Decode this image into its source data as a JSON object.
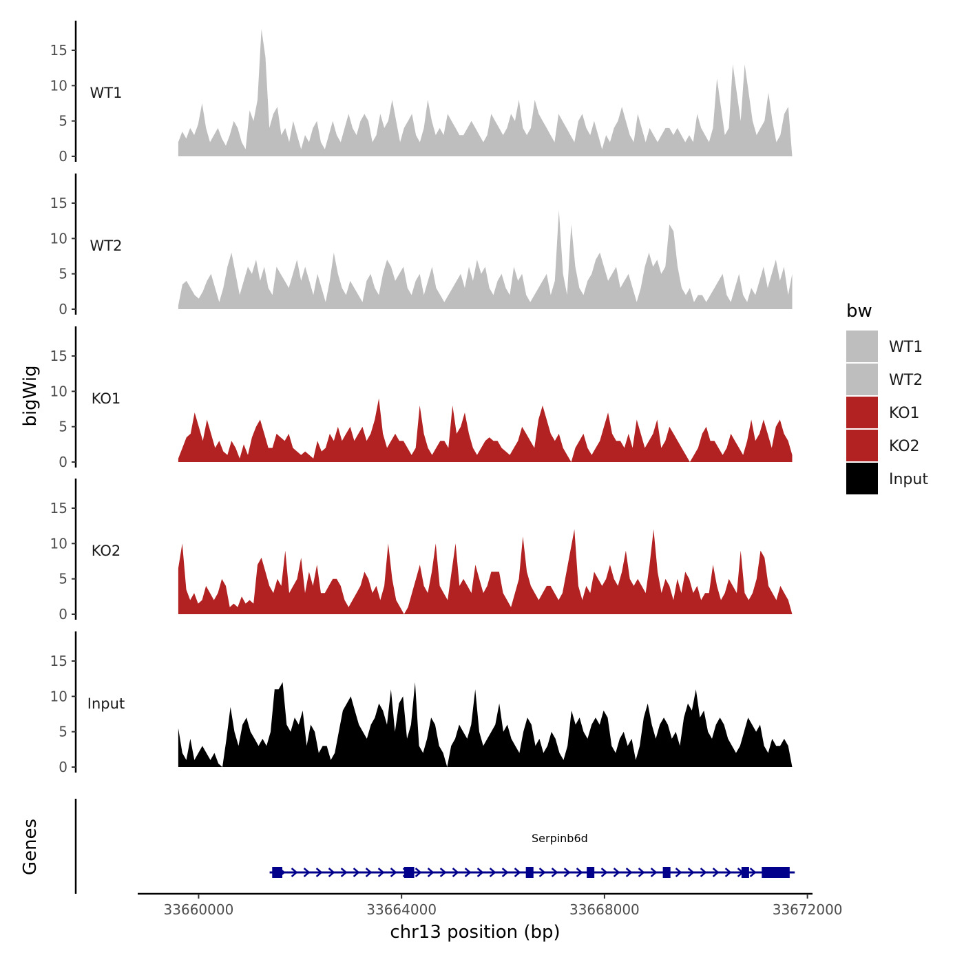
{
  "chart_data": {
    "type": "area",
    "xlabel": "chr13 position (bp)",
    "ylabel": "bigWig",
    "gene_panel_label": "Genes",
    "xlim": [
      33658800,
      33672100
    ],
    "region": [
      33659600,
      33671700
    ],
    "ylim": [
      0,
      18.8
    ],
    "x_ticks": [
      33660000,
      33664000,
      33668000,
      33672000
    ],
    "x_tick_labels": [
      "33660000",
      "33664000",
      "33668000",
      "33672000"
    ],
    "y_ticks": [
      0,
      5,
      10,
      15
    ],
    "y_tick_labels": [
      "0",
      "5",
      "10",
      "15"
    ],
    "legend": {
      "title": "bw",
      "entries": [
        {
          "label": "WT1",
          "color": "#bebebe"
        },
        {
          "label": "WT2",
          "color": "#bebebe"
        },
        {
          "label": "KO1",
          "color": "#b22222"
        },
        {
          "label": "KO2",
          "color": "#b22222"
        },
        {
          "label": "Input",
          "color": "#000000"
        }
      ]
    },
    "series": [
      {
        "name": "WT1",
        "color": "#bebebe",
        "values": [
          2,
          3.5,
          2.5,
          4,
          3,
          4.5,
          7.5,
          4,
          2,
          3,
          4,
          2.5,
          1.5,
          3,
          5,
          4,
          2,
          1,
          6.5,
          5,
          8,
          18,
          14,
          4,
          6,
          7,
          3,
          4,
          2,
          5,
          3,
          1,
          3,
          2,
          4,
          5,
          2,
          1,
          3,
          5,
          3,
          2,
          4,
          6,
          4,
          3,
          5,
          6,
          5,
          2,
          3,
          6,
          4,
          5,
          8,
          5,
          2,
          4,
          5,
          6,
          3,
          2,
          4,
          8,
          5,
          3,
          4,
          3,
          6,
          5,
          4,
          3,
          3,
          4,
          5,
          4,
          3,
          2,
          3,
          6,
          5,
          4,
          3,
          4,
          6,
          5,
          8,
          4,
          3,
          4,
          8,
          6,
          5,
          4,
          3,
          2,
          6,
          5,
          4,
          3,
          2,
          5,
          6,
          4,
          3,
          5,
          3,
          1,
          3,
          2,
          4,
          5,
          7,
          5,
          3,
          2,
          6,
          4,
          2,
          4,
          3,
          2,
          3,
          4,
          4,
          3,
          4,
          3,
          2,
          3,
          2,
          6,
          4,
          3,
          2,
          4,
          11,
          7,
          3,
          4,
          13,
          9,
          5,
          13,
          9,
          5,
          3,
          4,
          5,
          9,
          5,
          2,
          3,
          6,
          7,
          0
        ]
      },
      {
        "name": "WT2",
        "color": "#bebebe",
        "values": [
          0.5,
          3.5,
          4,
          3,
          2,
          1.5,
          2.5,
          4,
          5,
          3,
          1,
          3,
          6,
          8,
          5,
          2,
          4,
          6,
          5,
          7,
          4,
          6,
          3,
          2,
          6,
          5,
          4,
          3,
          5,
          7,
          4,
          6,
          4,
          2,
          5,
          3,
          1,
          4,
          8,
          5,
          3,
          2,
          4,
          3,
          2,
          1,
          4,
          5,
          3,
          2,
          5,
          7,
          6,
          4,
          5,
          6,
          3,
          2,
          4,
          5,
          2,
          4,
          6,
          3,
          2,
          1,
          2,
          3,
          4,
          5,
          3,
          6,
          4,
          7,
          5,
          6,
          3,
          2,
          4,
          5,
          3,
          2,
          6,
          4,
          5,
          2,
          1,
          2,
          3,
          4,
          5,
          2,
          4,
          14,
          5,
          2,
          12,
          6,
          3,
          2,
          4,
          5,
          7,
          8,
          6,
          4,
          5,
          6,
          3,
          4,
          5,
          3,
          1,
          3,
          6,
          8,
          6,
          7,
          5,
          6,
          12,
          11,
          6,
          3,
          2,
          3,
          1,
          2,
          2,
          1,
          2,
          3,
          4,
          5,
          2,
          1,
          3,
          5,
          2,
          1,
          3,
          2,
          4,
          6,
          3,
          5,
          7,
          4,
          6,
          2,
          5
        ],
        "_note": "WT2 values"
      },
      {
        "name": "KO1",
        "color": "#b22222",
        "values": [
          0.5,
          2,
          3.5,
          4,
          7,
          5,
          3,
          6,
          4,
          2,
          3,
          1.5,
          1,
          3,
          2,
          0.5,
          2.5,
          1,
          3.5,
          5,
          6,
          4,
          2,
          2,
          4,
          3.5,
          3,
          4,
          2,
          1.5,
          1,
          1.5,
          1,
          0.5,
          3,
          1.5,
          2,
          4,
          3,
          5,
          3,
          4,
          5,
          3,
          4,
          5,
          3,
          4,
          6,
          9,
          4,
          2,
          3,
          4,
          3,
          3,
          2,
          1,
          2,
          8,
          4,
          2,
          1,
          2,
          3,
          3,
          2,
          8,
          4,
          5,
          7,
          4,
          2,
          1,
          2,
          3,
          3.5,
          3,
          3,
          2,
          1.5,
          1,
          2,
          3,
          5,
          4,
          3,
          2,
          6,
          8,
          6,
          4,
          3,
          4,
          2,
          1,
          0,
          2,
          3,
          4,
          2,
          1,
          2,
          3,
          5,
          7,
          4,
          3,
          3,
          2,
          4,
          2,
          6,
          4,
          2,
          3,
          4,
          6,
          2,
          3,
          5,
          4,
          3,
          2,
          1,
          0,
          1,
          2,
          4,
          5,
          3,
          3,
          2,
          1,
          2,
          4,
          3,
          2,
          1,
          3,
          6,
          3,
          4,
          6,
          4,
          2,
          5,
          6,
          4,
          3,
          1
        ]
      },
      {
        "name": "KO2",
        "color": "#b22222",
        "values": [
          6.5,
          10,
          3.5,
          2,
          3,
          1.5,
          2,
          4,
          3,
          2,
          3,
          5,
          4,
          1,
          1.5,
          1,
          2.5,
          1.5,
          2,
          1.5,
          7,
          8,
          6,
          4,
          3,
          5,
          4,
          9,
          3,
          4,
          5,
          8,
          3,
          6,
          4,
          7,
          3,
          3,
          4,
          5,
          5,
          4,
          2,
          1,
          2,
          3,
          4,
          6,
          5,
          3,
          4,
          2,
          4,
          10,
          5,
          2,
          1,
          0,
          1,
          3,
          5,
          7,
          4,
          3,
          6,
          10,
          4,
          3,
          2,
          6,
          10,
          4,
          5,
          4,
          3,
          7,
          5,
          3,
          4,
          6,
          6,
          6,
          3,
          2,
          1,
          3,
          5,
          11,
          6,
          4,
          3,
          2,
          3,
          4,
          4,
          3,
          2,
          3,
          6,
          9,
          12,
          4,
          2,
          4,
          3,
          6,
          5,
          4,
          5,
          7,
          5,
          4,
          6,
          9,
          5,
          4,
          5,
          4,
          3,
          7,
          12,
          6,
          3,
          5,
          4,
          2,
          5,
          3,
          6,
          5,
          3,
          4,
          2,
          3,
          3,
          7,
          4,
          2,
          3,
          5,
          4,
          3,
          9,
          3,
          2,
          3,
          5,
          9,
          8,
          4,
          3,
          2,
          4,
          3,
          2,
          0
        ]
      },
      {
        "name": "Input",
        "color": "#000000",
        "values": [
          5.5,
          2,
          1,
          4,
          1,
          2,
          3,
          2,
          1,
          2,
          0.5,
          0,
          4,
          8.5,
          5,
          3,
          6,
          7,
          5,
          4,
          3,
          4,
          3,
          5,
          11,
          11,
          12,
          6,
          5,
          7,
          6,
          8,
          3,
          6,
          5,
          2,
          3,
          3,
          1,
          2,
          5,
          8,
          9,
          10,
          8,
          6,
          5,
          4,
          6,
          7,
          9,
          8,
          6,
          11,
          5,
          9,
          10,
          4,
          6,
          12,
          3,
          2,
          4,
          7,
          6,
          3,
          2,
          0,
          3,
          4,
          6,
          5,
          4,
          6,
          11,
          5,
          3,
          4,
          5,
          6,
          9,
          5,
          6,
          4,
          3,
          2,
          5,
          7,
          6,
          3,
          4,
          2,
          3,
          5,
          4,
          2,
          1,
          3,
          8,
          6,
          7,
          5,
          4,
          6,
          7,
          6,
          8,
          7,
          3,
          2,
          4,
          5,
          3,
          4,
          1,
          3,
          7,
          9,
          6,
          4,
          6,
          7,
          6,
          4,
          5,
          3,
          7,
          9,
          8,
          11,
          7,
          8,
          5,
          4,
          6,
          7,
          6,
          4,
          3,
          2,
          3,
          5,
          7,
          6,
          5,
          6,
          3,
          2,
          4,
          3,
          3,
          4,
          3,
          0
        ]
      }
    ],
    "gene": {
      "name": "Serpinb6d",
      "strand": "+",
      "start": 33661400,
      "end": 33671750,
      "exons": [
        [
          33661450,
          33661650
        ],
        [
          33664050,
          33664250
        ],
        [
          33666450,
          33666600
        ],
        [
          33667650,
          33667800
        ],
        [
          33669150,
          33669300
        ],
        [
          33670700,
          33670850
        ],
        [
          33671100,
          33671650
        ]
      ],
      "color": "#00008b"
    }
  }
}
